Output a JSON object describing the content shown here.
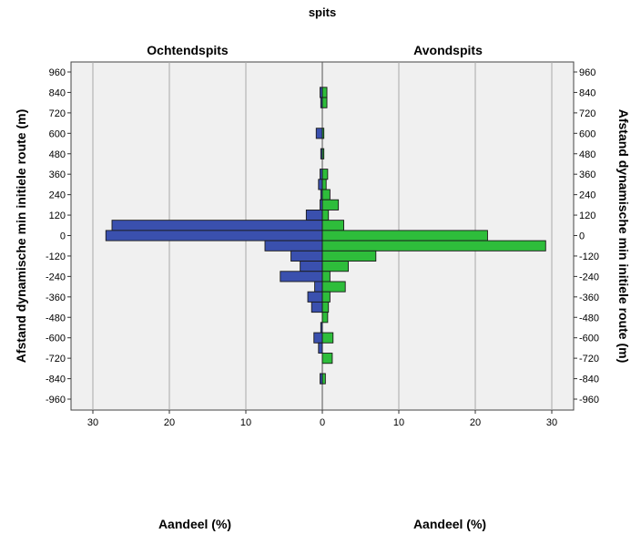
{
  "chart_data": {
    "type": "bar",
    "orientation": "horizontal-back-to-back",
    "title": "spits",
    "panels": [
      "Ochtendspits",
      "Avondspits"
    ],
    "xlabel": "Aandeel (%)",
    "ylabel": "Afstand dynamische min initiele route  (m)",
    "ylim": [
      -960,
      960
    ],
    "xlim": [
      0,
      30
    ],
    "xticks": [
      "30",
      "20",
      "10",
      "0",
      "10",
      "20",
      "30"
    ],
    "yticks": [
      "960",
      "840",
      "720",
      "600",
      "480",
      "360",
      "240",
      "120",
      "0",
      "-120",
      "-240",
      "-360",
      "-480",
      "-600",
      "-720",
      "-840",
      "-960"
    ],
    "bin_width": 60,
    "colors": {
      "Ochtendspits": "#3a50ae",
      "Avondspits": "#2ebd3b"
    },
    "grid": true,
    "series": [
      {
        "name": "Ochtendspits",
        "bins": [
          {
            "y": 840,
            "v": 0.3
          },
          {
            "y": 780,
            "v": 0.2
          },
          {
            "y": 600,
            "v": 0.8
          },
          {
            "y": 480,
            "v": 0.2
          },
          {
            "y": 360,
            "v": 0.3
          },
          {
            "y": 300,
            "v": 0.5
          },
          {
            "y": 240,
            "v": 0.2
          },
          {
            "y": 180,
            "v": 0.3
          },
          {
            "y": 120,
            "v": 2.1
          },
          {
            "y": 60,
            "v": 27.5
          },
          {
            "y": 0,
            "v": 28.3
          },
          {
            "y": -60,
            "v": 7.5
          },
          {
            "y": -120,
            "v": 4.1
          },
          {
            "y": -180,
            "v": 2.9
          },
          {
            "y": -240,
            "v": 5.5
          },
          {
            "y": -300,
            "v": 1.0
          },
          {
            "y": -360,
            "v": 1.9
          },
          {
            "y": -420,
            "v": 1.4
          },
          {
            "y": -540,
            "v": 0.2
          },
          {
            "y": -600,
            "v": 1.1
          },
          {
            "y": -660,
            "v": 0.5
          },
          {
            "y": -840,
            "v": 0.3
          }
        ]
      },
      {
        "name": "Avondspits",
        "bins": [
          {
            "y": 840,
            "v": 0.6
          },
          {
            "y": 780,
            "v": 0.6
          },
          {
            "y": 600,
            "v": 0.2
          },
          {
            "y": 480,
            "v": 0.2
          },
          {
            "y": 360,
            "v": 0.7
          },
          {
            "y": 300,
            "v": 0.5
          },
          {
            "y": 240,
            "v": 1.0
          },
          {
            "y": 180,
            "v": 2.1
          },
          {
            "y": 120,
            "v": 0.8
          },
          {
            "y": 60,
            "v": 2.8
          },
          {
            "y": 0,
            "v": 21.6
          },
          {
            "y": -60,
            "v": 29.2
          },
          {
            "y": -120,
            "v": 7.0
          },
          {
            "y": -180,
            "v": 3.4
          },
          {
            "y": -240,
            "v": 1.0
          },
          {
            "y": -300,
            "v": 3.0
          },
          {
            "y": -360,
            "v": 1.0
          },
          {
            "y": -420,
            "v": 0.8
          },
          {
            "y": -480,
            "v": 0.7
          },
          {
            "y": -600,
            "v": 1.4
          },
          {
            "y": -720,
            "v": 1.3
          },
          {
            "y": -840,
            "v": 0.4
          }
        ]
      }
    ]
  }
}
